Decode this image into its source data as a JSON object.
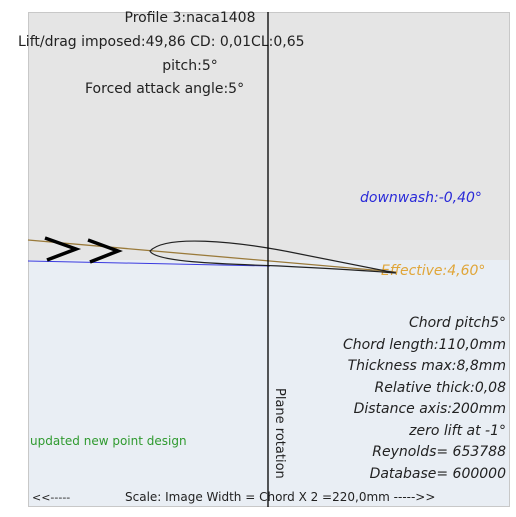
{
  "header": {
    "profile": "Profile 3:naca1408",
    "lift_drag": "Lift/drag imposed:49,86 CD: 0,01CL:0,65",
    "pitch": "pitch:5°",
    "forced_attack": "Forced attack angle:5°"
  },
  "downwash_label": "downwash:-0,40°",
  "effective_label": "Effective:4,60°",
  "specs": [
    "Chord pitch5°",
    "Chord length:110,0mm",
    "Thickness max:8,8mm",
    "Relative thick:0,08",
    "Distance axis:200mm",
    "zero lift at -1°",
    "Reynolds= 653788",
    "Database= 600000"
  ],
  "status_message": "updated new point design",
  "plane_rotation_label": "Plane rotation",
  "footer": {
    "left_arrow": "<<-----",
    "scale_text": "Scale: Image Width = Chord X 2 =220,0mm ----->>"
  },
  "colors": {
    "upper_bg": "#e5e5e5",
    "lower_bg": "#e9eef4",
    "downwash": "#2a2ad8",
    "effective": "#e0a63a",
    "chord_line": "#9a7a3a",
    "status": "#2f9a2f"
  },
  "icons": [
    "flow-direction-arrow-icon",
    "flow-direction-arrow-icon"
  ]
}
